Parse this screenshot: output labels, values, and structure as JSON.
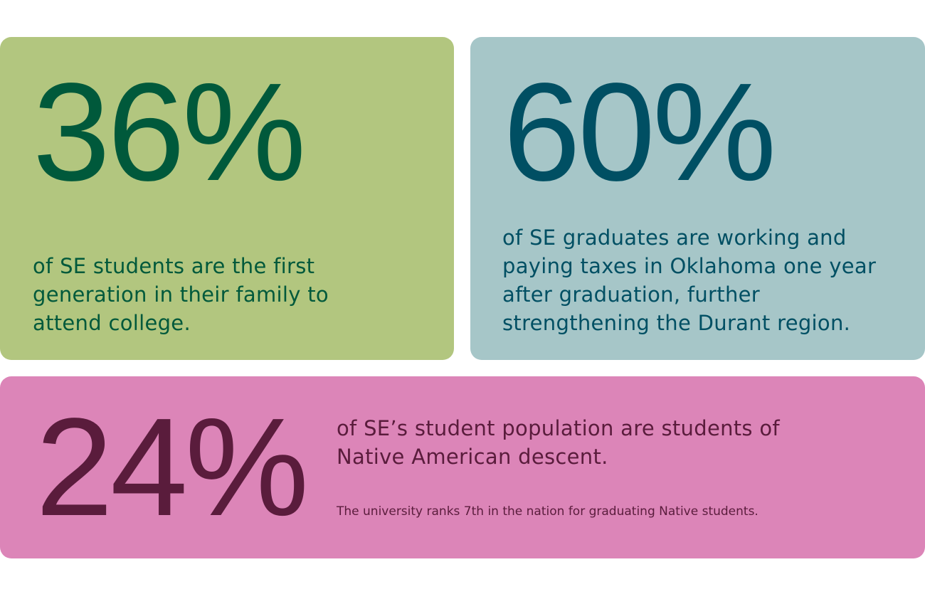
{
  "cards": [
    {
      "stat": "36%",
      "description": "of SE students are the first generation in their family to attend college."
    },
    {
      "stat": "60%",
      "description": "of SE graduates are working and paying taxes in Oklahoma one year after graduation, further strengthening the Durant region."
    },
    {
      "stat": "24%",
      "description": "of SE’s student population are students of Native American descent.",
      "note": "The university ranks 7th in the nation for graduating Native students."
    }
  ]
}
